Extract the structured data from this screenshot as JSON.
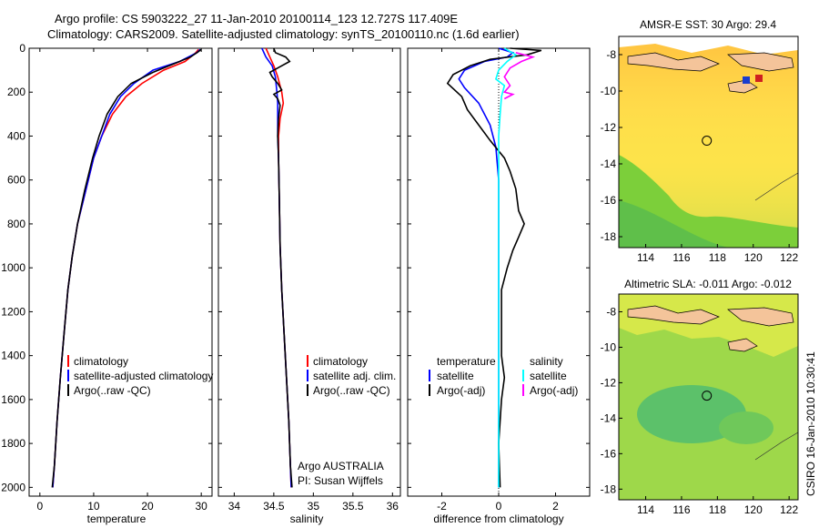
{
  "header": {
    "line1": "Argo profile: CS 5903222_27 11-Jan-2010 20100114_123 12.727S 117.409E",
    "line2": "Climatology: CARS2009. Satellite-adjusted climatology: synTS_20100110.nc (1.6d earlier)"
  },
  "colors": {
    "climatology": "#ff0000",
    "satellite": "#0000ff",
    "argo": "#000000",
    "sal_satellite": "#00ffff",
    "sal_argo": "#ff00ff"
  },
  "chart_data": [
    {
      "id": "temperature",
      "type": "line",
      "xlabel": "temperature",
      "xlim": [
        -2,
        32
      ],
      "ylim": [
        2040,
        0
      ],
      "xticks": [
        0,
        10,
        20,
        30
      ],
      "yticks": [
        0,
        200,
        400,
        600,
        800,
        1000,
        1200,
        1400,
        1600,
        1800,
        2000
      ],
      "legend": [
        "climatology",
        "satellite-adjusted climatology",
        "Argo(..raw -QC)"
      ],
      "series": [
        {
          "name": "climatology",
          "color": "red",
          "points": [
            [
              29.5,
              5
            ],
            [
              29,
              20
            ],
            [
              27,
              60
            ],
            [
              23,
              100
            ],
            [
              19,
              160
            ],
            [
              16,
              220
            ],
            [
              13.5,
              300
            ],
            [
              11.5,
              400
            ],
            [
              10,
              500
            ],
            [
              8.5,
              650
            ],
            [
              7,
              800
            ],
            [
              6,
              950
            ],
            [
              5.2,
              1100
            ],
            [
              4.5,
              1300
            ],
            [
              3.8,
              1500
            ],
            [
              3.2,
              1700
            ],
            [
              2.7,
              1900
            ],
            [
              2.4,
              2000
            ]
          ]
        },
        {
          "name": "satellite",
          "color": "blue",
          "points": [
            [
              29.8,
              5
            ],
            [
              29.2,
              20
            ],
            [
              26,
              60
            ],
            [
              21,
              100
            ],
            [
              17.5,
              160
            ],
            [
              15,
              220
            ],
            [
              13,
              300
            ],
            [
              11.5,
              400
            ],
            [
              10,
              500
            ],
            [
              8.5,
              650
            ],
            [
              7,
              800
            ],
            [
              6,
              950
            ],
            [
              5.2,
              1100
            ],
            [
              4.5,
              1300
            ],
            [
              3.8,
              1500
            ],
            [
              3.2,
              1700
            ],
            [
              2.7,
              1900
            ],
            [
              2.4,
              2000
            ]
          ]
        },
        {
          "name": "argo",
          "color": "black",
          "points": [
            [
              30,
              5
            ],
            [
              29.5,
              15
            ],
            [
              28,
              40
            ],
            [
              25,
              70
            ],
            [
              21,
              110
            ],
            [
              17,
              160
            ],
            [
              14.5,
              220
            ],
            [
              12.5,
              300
            ],
            [
              11,
              400
            ],
            [
              9.8,
              500
            ],
            [
              8.3,
              650
            ],
            [
              7,
              800
            ],
            [
              6,
              950
            ],
            [
              5.2,
              1100
            ],
            [
              4.5,
              1300
            ],
            [
              3.8,
              1500
            ],
            [
              3.2,
              1700
            ],
            [
              2.7,
              1900
            ],
            [
              2.3,
              2000
            ]
          ]
        }
      ]
    },
    {
      "id": "salinity",
      "type": "line",
      "xlabel": "salinity",
      "xlim": [
        33.8,
        36.1
      ],
      "ylim": [
        2040,
        0
      ],
      "xticks": [
        34,
        34.5,
        35,
        35.5,
        36
      ],
      "legend": [
        "climatology",
        "satellite adj. clim.",
        "Argo(..raw -QC)"
      ],
      "annotation": [
        "Argo AUSTRALIA",
        "PI: Susan Wijffels"
      ],
      "series": [
        {
          "name": "climatology",
          "color": "red",
          "points": [
            [
              34.4,
              0
            ],
            [
              34.45,
              40
            ],
            [
              34.5,
              80
            ],
            [
              34.55,
              130
            ],
            [
              34.6,
              200
            ],
            [
              34.62,
              250
            ],
            [
              34.58,
              320
            ],
            [
              34.56,
              400
            ],
            [
              34.56,
              500
            ],
            [
              34.57,
              700
            ],
            [
              34.58,
              900
            ],
            [
              34.6,
              1100
            ],
            [
              34.63,
              1300
            ],
            [
              34.66,
              1500
            ],
            [
              34.69,
              1700
            ],
            [
              34.71,
              1900
            ],
            [
              34.72,
              2000
            ]
          ]
        },
        {
          "name": "satellite",
          "color": "blue",
          "points": [
            [
              34.35,
              0
            ],
            [
              34.4,
              40
            ],
            [
              34.48,
              80
            ],
            [
              34.52,
              130
            ],
            [
              34.54,
              200
            ],
            [
              34.55,
              250
            ],
            [
              34.55,
              320
            ],
            [
              34.55,
              400
            ],
            [
              34.56,
              500
            ],
            [
              34.57,
              700
            ],
            [
              34.58,
              900
            ],
            [
              34.6,
              1100
            ],
            [
              34.63,
              1300
            ],
            [
              34.66,
              1500
            ],
            [
              34.69,
              1700
            ],
            [
              34.71,
              1900
            ],
            [
              34.72,
              2000
            ]
          ]
        },
        {
          "name": "argo",
          "color": "black",
          "points": [
            [
              34.5,
              0
            ],
            [
              34.52,
              20
            ],
            [
              34.65,
              40
            ],
            [
              34.7,
              60
            ],
            [
              34.55,
              90
            ],
            [
              34.45,
              110
            ],
            [
              34.48,
              130
            ],
            [
              34.55,
              160
            ],
            [
              34.6,
              190
            ],
            [
              34.5,
              210
            ],
            [
              34.55,
              230
            ],
            [
              34.58,
              260
            ],
            [
              34.56,
              320
            ],
            [
              34.55,
              400
            ],
            [
              34.56,
              500
            ],
            [
              34.57,
              700
            ],
            [
              34.58,
              900
            ],
            [
              34.6,
              1100
            ],
            [
              34.63,
              1300
            ],
            [
              34.66,
              1500
            ],
            [
              34.69,
              1700
            ],
            [
              34.71,
              1900
            ],
            [
              34.73,
              2000
            ]
          ]
        }
      ]
    },
    {
      "id": "difference",
      "type": "line",
      "xlabel": "difference from climatology",
      "xlim": [
        -3.2,
        3.2
      ],
      "ylim": [
        2040,
        0
      ],
      "xticks": [
        -2,
        0,
        2
      ],
      "legend_left_title": "temperature",
      "legend_left": [
        "satellite",
        "Argo(-adj)"
      ],
      "legend_right_title": "salinity",
      "legend_right": [
        "satellite",
        "Argo(-adj)"
      ],
      "series": [
        {
          "name": "temp satellite",
          "color": "blue",
          "points": [
            [
              0,
              0
            ],
            [
              0.5,
              20
            ],
            [
              0.3,
              40
            ],
            [
              -0.5,
              60
            ],
            [
              -1.2,
              100
            ],
            [
              -1.4,
              140
            ],
            [
              -1.2,
              180
            ],
            [
              -0.7,
              250
            ],
            [
              -0.3,
              350
            ],
            [
              -0.1,
              450
            ],
            [
              0,
              600
            ],
            [
              0,
              800
            ],
            [
              0,
              1000
            ],
            [
              0,
              1200
            ],
            [
              0,
              1400
            ],
            [
              0,
              1600
            ],
            [
              0,
              1800
            ],
            [
              0,
              2000
            ]
          ]
        },
        {
          "name": "temp argo",
          "color": "black",
          "points": [
            [
              0.4,
              0
            ],
            [
              1.5,
              10
            ],
            [
              1,
              30
            ],
            [
              -0.3,
              50
            ],
            [
              -1,
              80
            ],
            [
              -1.6,
              120
            ],
            [
              -1.8,
              160
            ],
            [
              -1.3,
              220
            ],
            [
              -1.1,
              280
            ],
            [
              -0.7,
              350
            ],
            [
              -0.3,
              420
            ],
            [
              0.2,
              500
            ],
            [
              0.4,
              560
            ],
            [
              0.6,
              640
            ],
            [
              0.7,
              740
            ],
            [
              0.9,
              800
            ],
            [
              0.7,
              860
            ],
            [
              0.5,
              920
            ],
            [
              0.3,
              1000
            ],
            [
              0.1,
              1100
            ],
            [
              0.1,
              1250
            ],
            [
              0.1,
              1400
            ],
            [
              0.2,
              1500
            ],
            [
              0.1,
              1600
            ],
            [
              0,
              1800
            ],
            [
              0.05,
              2000
            ]
          ]
        },
        {
          "name": "sal satellite",
          "color": "cyan",
          "points": [
            [
              0.2,
              0
            ],
            [
              0.6,
              30
            ],
            [
              0.3,
              60
            ],
            [
              0,
              100
            ],
            [
              -0.1,
              140
            ],
            [
              0.2,
              170
            ],
            [
              0.1,
              220
            ],
            [
              0.05,
              300
            ],
            [
              0,
              400
            ],
            [
              0,
              500
            ],
            [
              0,
              700
            ],
            [
              0,
              900
            ],
            [
              0,
              1100
            ],
            [
              0,
              1300
            ],
            [
              0,
              1500
            ],
            [
              0,
              1700
            ],
            [
              0,
              1900
            ],
            [
              0,
              2000
            ]
          ]
        },
        {
          "name": "sal argo",
          "color": "magenta",
          "points": [
            [
              0.6,
              20
            ],
            [
              1.2,
              40
            ],
            [
              0.8,
              60
            ],
            [
              0.4,
              90
            ],
            [
              0.2,
              130
            ],
            [
              0.4,
              170
            ],
            [
              0.2,
              200
            ],
            [
              0.5,
              210
            ],
            [
              0.2,
              230
            ]
          ]
        }
      ]
    }
  ],
  "maps": [
    {
      "id": "sst",
      "title": "AMSR-E SST: 30 Argo: 29.4",
      "xticks": [
        114,
        116,
        118,
        120,
        122
      ],
      "yticks": [
        -8,
        -10,
        -12,
        -14,
        -16,
        -18
      ],
      "xlim": [
        112.5,
        122.5
      ],
      "ylim": [
        -18.6,
        -7
      ]
    },
    {
      "id": "sla",
      "title": "Altimetric SLA: -0.011 Argo: -0.012",
      "xticks": [
        114,
        116,
        118,
        120,
        122
      ],
      "yticks": [
        -8,
        -10,
        -12,
        -14,
        -16,
        -18
      ],
      "xlim": [
        112.5,
        122.5
      ],
      "ylim": [
        -18.6,
        -7
      ]
    }
  ],
  "credit": "CSIRO 16-Jan-2010 10:30:41"
}
